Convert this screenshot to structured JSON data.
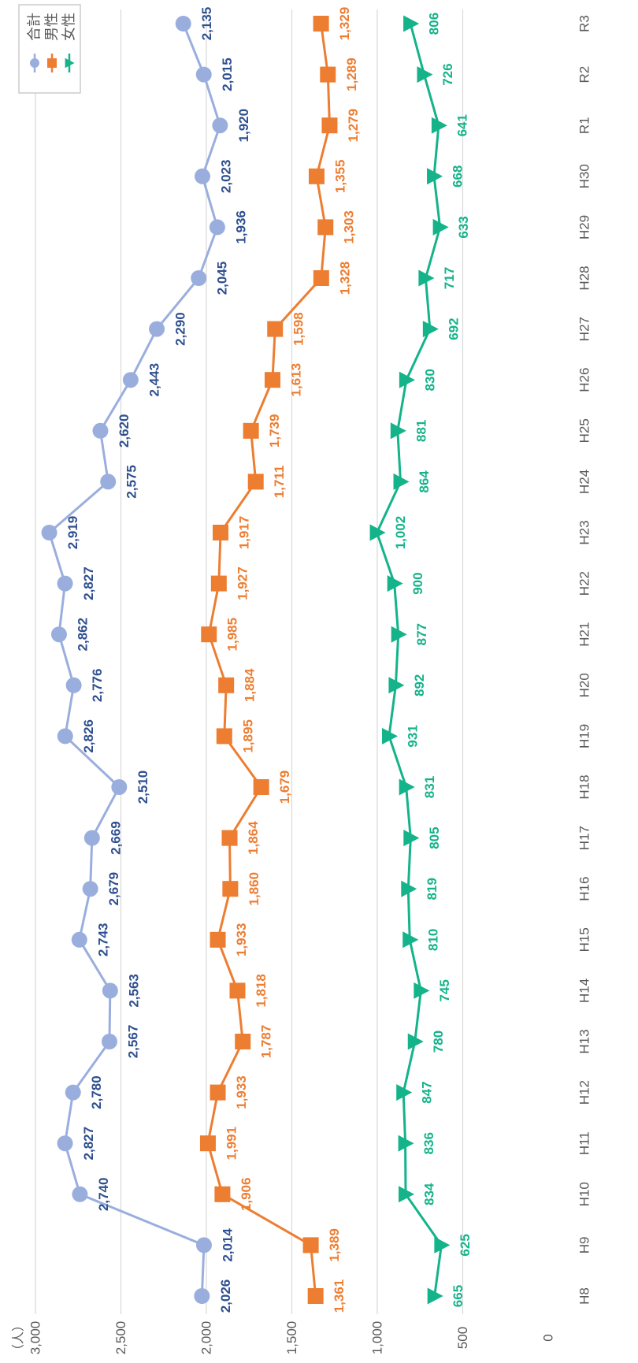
{
  "chart_data": {
    "type": "line",
    "unit_label": "（人）",
    "categories": [
      "H8",
      "H9",
      "H10",
      "H11",
      "H12",
      "H13",
      "H14",
      "H15",
      "H16",
      "H17",
      "H18",
      "H19",
      "H20",
      "H21",
      "H22",
      "H23",
      "H24",
      "H25",
      "H26",
      "H27",
      "H28",
      "H29",
      "H30",
      "R1",
      "R2",
      "R3"
    ],
    "yticks": [
      0,
      500,
      1000,
      1500,
      2000,
      2500,
      3000
    ],
    "ytick_labels": [
      "0",
      "500",
      "1,000",
      "1,500",
      "2,000",
      "2,500",
      "3,000"
    ],
    "ylim": [
      0,
      3000
    ],
    "grid": true,
    "legend_position": "top-right",
    "series": [
      {
        "name": "合計",
        "marker": "circle",
        "color": "#9aaede",
        "label_color": "#2e4f8f",
        "values": [
          2026,
          2014,
          2740,
          2827,
          2780,
          2567,
          2563,
          2743,
          2679,
          2669,
          2510,
          2826,
          2776,
          2862,
          2827,
          2919,
          2575,
          2620,
          2443,
          2290,
          2045,
          1936,
          2023,
          1920,
          2015,
          2135
        ],
        "labels": [
          "2,026",
          "2,014",
          "2,740",
          "2,827",
          "2,780",
          "2,567",
          "2,563",
          "2,743",
          "2,679",
          "2,669",
          "2,510",
          "2,826",
          "2,776",
          "2,862",
          "2,827",
          "2,919",
          "2,575",
          "2,620",
          "2,443",
          "2,290",
          "2,045",
          "1,936",
          "2,023",
          "1,920",
          "2,015",
          "2,135"
        ]
      },
      {
        "name": "男性",
        "marker": "square",
        "color": "#ed7d31",
        "label_color": "#ed7d31",
        "values": [
          1361,
          1389,
          1906,
          1991,
          1933,
          1787,
          1818,
          1933,
          1860,
          1864,
          1679,
          1895,
          1884,
          1985,
          1927,
          1917,
          1711,
          1739,
          1613,
          1598,
          1328,
          1303,
          1355,
          1279,
          1289,
          1329
        ],
        "labels": [
          "1,361",
          "1,389",
          "1,906",
          "1,991",
          "1,933",
          "1,787",
          "1,818",
          "1,933",
          "1,860",
          "1,864",
          "1,679",
          "1,895",
          "1,884",
          "1,985",
          "1,927",
          "1,917",
          "1,711",
          "1,739",
          "1,613",
          "1,598",
          "1,328",
          "1,303",
          "1,355",
          "1,279",
          "1,289",
          "1,329"
        ]
      },
      {
        "name": "女性",
        "marker": "triangle",
        "color": "#14b38a",
        "label_color": "#14b38a",
        "values": [
          665,
          625,
          834,
          836,
          847,
          780,
          745,
          810,
          819,
          805,
          831,
          931,
          892,
          877,
          900,
          1002,
          864,
          881,
          830,
          692,
          717,
          633,
          668,
          641,
          726,
          806
        ],
        "labels": [
          "665",
          "625",
          "834",
          "836",
          "847",
          "780",
          "745",
          "810",
          "819",
          "805",
          "831",
          "931",
          "892",
          "877",
          "900",
          "1,002",
          "864",
          "881",
          "830",
          "692",
          "717",
          "633",
          "668",
          "641",
          "726",
          "806"
        ]
      }
    ]
  }
}
